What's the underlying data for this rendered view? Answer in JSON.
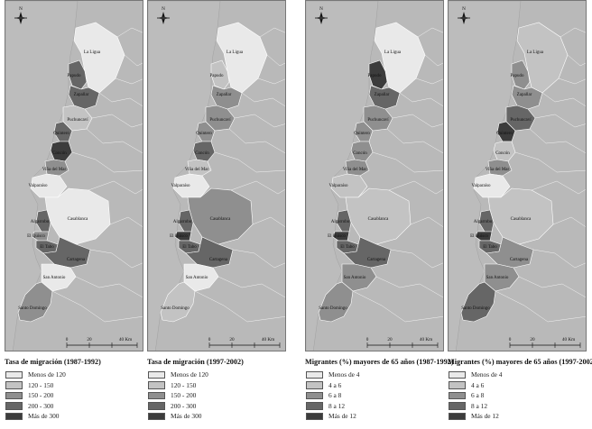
{
  "place_labels": {
    "la_ligua": "La Ligua",
    "papudo": "Papudo",
    "zapallar": "Zapallar",
    "puchuncavi": "Puchuncaví",
    "quintero": "Quintero",
    "concon": "Concón",
    "vina_del_mar": "Viña del Mar",
    "valparaiso": "Valparaíso",
    "casablanca": "Casablanca",
    "algarrobo": "Algarrobo",
    "el_quisco": "El Quisco",
    "el_tabo": "El Tabo",
    "cartagena": "Cartagena",
    "san_antonio": "San Antonio",
    "santo_domingo": "Santo Domingo"
  },
  "north_label": "N",
  "scale_labels": [
    "0",
    "20",
    "40 Km"
  ],
  "colors": {
    "background_land": "#b9b9b9",
    "ocean": "#bcbcbc",
    "class_1": "#e9e9e9",
    "class_2": "#c3c3c3",
    "class_3": "#8f8f8f",
    "class_4": "#666666",
    "class_5": "#3c3c3c"
  },
  "panels": [
    {
      "legend_title": "Tasa de migración (1987-1992)",
      "legend_items": [
        "Menos de 120",
        "120 - 150",
        "150 - 200",
        "200 - 300",
        "Más de 300"
      ],
      "classes": {
        "la_ligua": 1,
        "papudo": 4,
        "zapallar": 4,
        "puchuncavi": 2,
        "quintero": 4,
        "concon": 5,
        "vina_del_mar": 3,
        "valparaiso": 1,
        "casablanca": 1,
        "algarrobo": 4,
        "el_quisco": 3,
        "el_tabo": 4,
        "cartagena": 4,
        "san_antonio": 1,
        "santo_domingo": 3
      }
    },
    {
      "legend_title": "Tasa de migración (1997-2002)",
      "legend_items": [
        "Menos de 120",
        "120 - 150",
        "150 - 200",
        "200 - 300",
        "Más de 300"
      ],
      "classes": {
        "la_ligua": 1,
        "papudo": 2,
        "zapallar": 3,
        "puchuncavi": 3,
        "quintero": 3,
        "concon": 4,
        "vina_del_mar": 2,
        "valparaiso": 1,
        "casablanca": 3,
        "algarrobo": 4,
        "el_quisco": 5,
        "el_tabo": 4,
        "cartagena": 4,
        "san_antonio": 1,
        "santo_domingo": 2
      }
    },
    {
      "legend_title": "Migrantes (%) mayores de 65 años (1987-1992)",
      "legend_items": [
        "Menos de 4",
        "4 a 6",
        "6 a 8",
        "8 a 12",
        "Más de 12"
      ],
      "classes": {
        "la_ligua": 1,
        "papudo": 5,
        "zapallar": 4,
        "puchuncavi": 3,
        "quintero": 3,
        "concon": 3,
        "vina_del_mar": 3,
        "valparaiso": 2,
        "casablanca": 2,
        "algarrobo": 4,
        "el_quisco": 5,
        "el_tabo": 4,
        "cartagena": 4,
        "san_antonio": 3,
        "santo_domingo": 3
      }
    },
    {
      "legend_title": "Migrantes (%) mayores de 65 años (1997-2002)",
      "legend_items": [
        "Menos de 4",
        "4 a 6",
        "6 a 8",
        "8 a 12",
        "Más de 12"
      ],
      "classes": {
        "la_ligua": 2,
        "papudo": 3,
        "zapallar": 3,
        "puchuncavi": 4,
        "quintero": 5,
        "concon": 2,
        "vina_del_mar": 3,
        "valparaiso": 1,
        "casablanca": 2,
        "algarrobo": 4,
        "el_quisco": 5,
        "el_tabo": 4,
        "cartagena": 3,
        "san_antonio": 3,
        "santo_domingo": 4
      }
    }
  ]
}
